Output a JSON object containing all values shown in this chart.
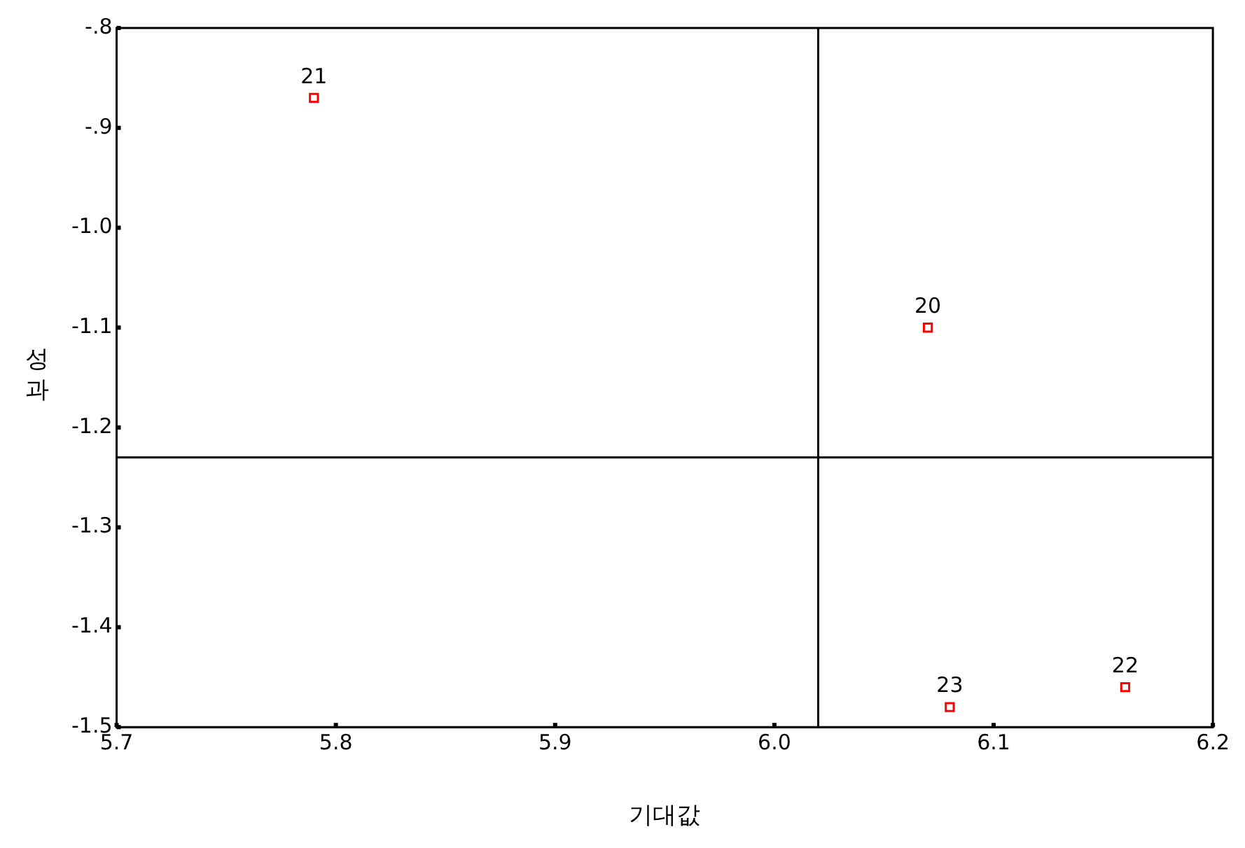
{
  "chart_data": {
    "type": "scatter",
    "xlabel": "기대값",
    "ylabel": "성과",
    "x": [
      6.07,
      5.79,
      6.16,
      6.08
    ],
    "series": [
      {
        "color": "#ff0000",
        "values": [
          -1.1,
          -0.87,
          -1.46,
          -1.48
        ]
      }
    ],
    "annotations": [
      {
        "text": "20",
        "x": 6.07,
        "y": -1.1
      },
      {
        "text": "21",
        "x": 5.79,
        "y": -0.87
      },
      {
        "text": "22",
        "x": 6.16,
        "y": -1.46
      },
      {
        "text": "23",
        "x": 6.08,
        "y": -1.48
      }
    ],
    "ref_lines": [
      {
        "axis": "x",
        "value": 6.02,
        "color": "#000000"
      },
      {
        "axis": "y",
        "value": -1.23,
        "color": "#000000"
      }
    ],
    "xlim": [
      5.7,
      6.2
    ],
    "ylim": [
      -1.5,
      -0.8
    ],
    "xticks": [
      {
        "value": 5.7,
        "label": "5.7"
      },
      {
        "value": 5.8,
        "label": "5.8"
      },
      {
        "value": 5.9,
        "label": "5.9"
      },
      {
        "value": 6.0,
        "label": "6.0"
      },
      {
        "value": 6.1,
        "label": "6.1"
      },
      {
        "value": 6.2,
        "label": "6.2"
      }
    ],
    "yticks": [
      {
        "value": -0.8,
        "label": "-.8"
      },
      {
        "value": -0.9,
        "label": "-.9"
      },
      {
        "value": -1.0,
        "label": "-1.0"
      },
      {
        "value": -1.1,
        "label": "-1.1"
      },
      {
        "value": -1.2,
        "label": "-1.2"
      },
      {
        "value": -1.3,
        "label": "-1.3"
      },
      {
        "value": -1.4,
        "label": "-1.4"
      },
      {
        "value": -1.5,
        "label": "-1.5"
      }
    ],
    "marker": "square",
    "grid": false,
    "legend": false
  }
}
